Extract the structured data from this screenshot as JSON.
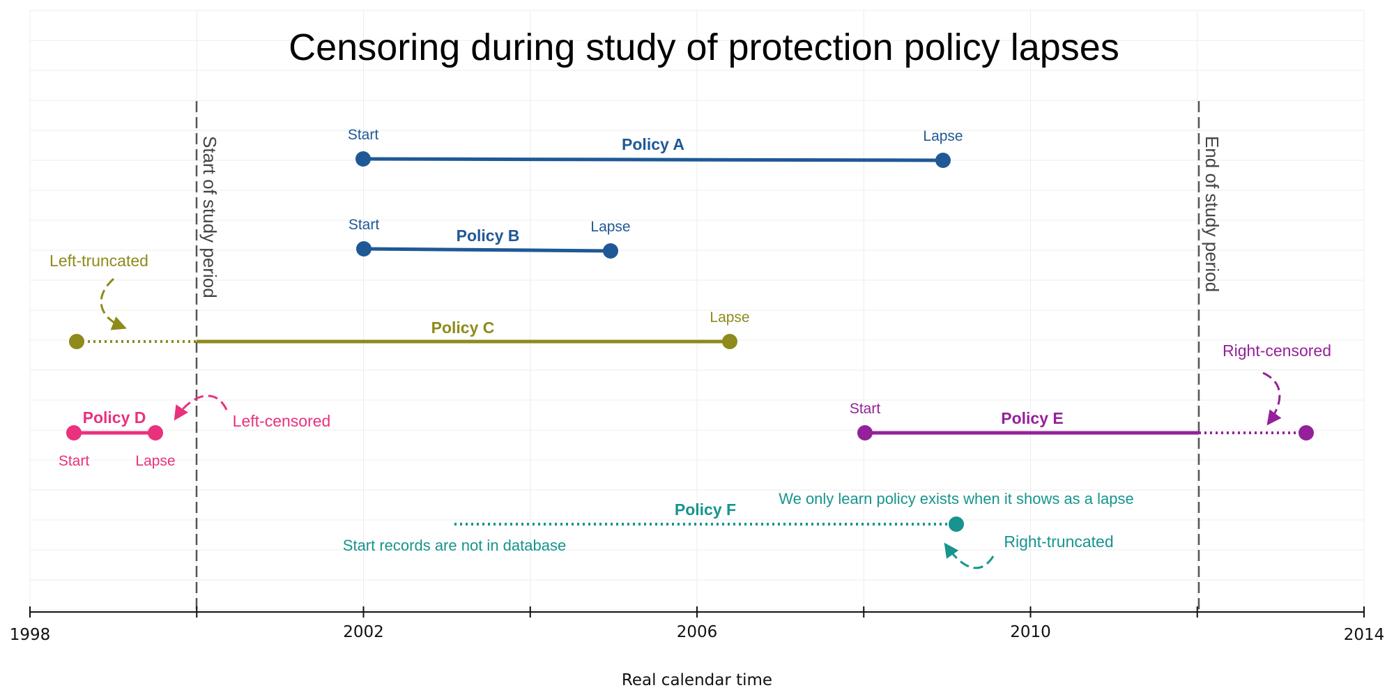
{
  "chart_data": {
    "type": "timeline",
    "title": "Censoring during study of protection policy lapses",
    "xlabel": "Real calendar time",
    "xlim": [
      1998,
      2014
    ],
    "x_ticks": [
      1998,
      2002,
      2006,
      2010,
      2014
    ],
    "grid": true,
    "study_period": {
      "start": 2000,
      "end": 2012,
      "start_label": "Start of study period",
      "end_label": "End of study period"
    },
    "policies": [
      {
        "name": "Policy A",
        "color": "#1f5896",
        "start": 2002.0,
        "end": 2008.95,
        "start_label": "Start",
        "end_label": "Lapse",
        "observed": [
          2002.0,
          2008.95
        ]
      },
      {
        "name": "Policy B",
        "color": "#1f5896",
        "start": 2002.0,
        "end": 2004.95,
        "start_label": "Start",
        "end_label": "Lapse",
        "observed": [
          2002.0,
          2004.95
        ]
      },
      {
        "name": "Policy C",
        "color": "#8e8a1b",
        "start": 1998.55,
        "end": 2006.4,
        "start_label": "",
        "end_label": "Lapse",
        "observed": [
          2000.0,
          2006.4
        ]
      },
      {
        "name": "Policy D",
        "color": "#e9317e",
        "start": 1998.5,
        "end": 1999.45,
        "start_label": "Start",
        "end_label": "Lapse",
        "observed": [
          1998.5,
          1999.45
        ]
      },
      {
        "name": "Policy E",
        "color": "#94219a",
        "start": 2008.0,
        "end": 2013.3,
        "start_label": "Start",
        "end_label": "",
        "observed": [
          2008.0,
          2012.0
        ]
      },
      {
        "name": "Policy F",
        "color": "#16948d",
        "start": 2003.1,
        "end": 2009.15,
        "start_label": "",
        "end_label": "",
        "observed": [
          2009.15,
          2009.15
        ]
      }
    ],
    "annotations": [
      {
        "text": "Left-truncated",
        "color": "#8e8a1b"
      },
      {
        "text": "Left-censored",
        "color": "#e9317e"
      },
      {
        "text": "Right-censored",
        "color": "#94219a"
      },
      {
        "text": "Right-truncated",
        "color": "#16948d"
      },
      {
        "text": "We only learn policy exists when it shows as a lapse",
        "color": "#16948d"
      },
      {
        "text": "Start records are not in database",
        "color": "#16948d"
      }
    ]
  }
}
